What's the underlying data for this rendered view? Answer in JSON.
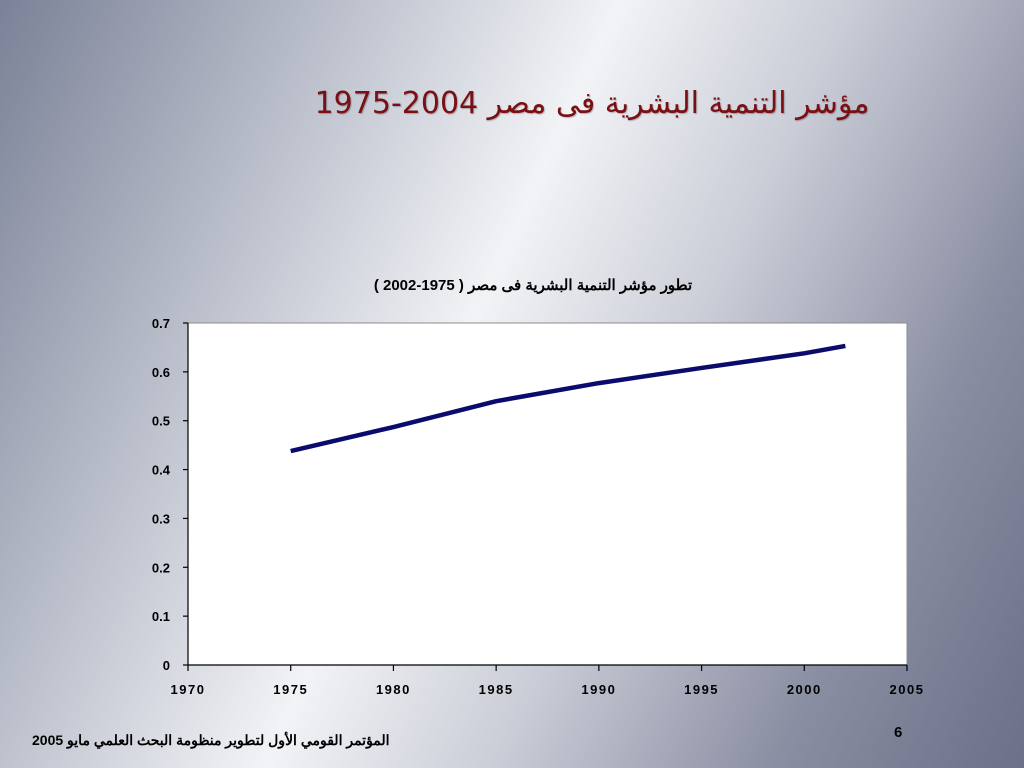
{
  "slide": {
    "title": "مؤشر التنمية البشرية فى مصر 2004-1975",
    "footer": "المؤتمر القومي الأول لتطوير منظومة البحث العلمي مايو 2005",
    "page_number": "6"
  },
  "colors": {
    "title": "#7a0f14",
    "line": "#0b0b6e",
    "plot_background": "#ffffff"
  },
  "chart_data": {
    "type": "line",
    "title": "تطور مؤشر التنمية البشرية فى مصر ( 1975-2002 )",
    "xlabel": "",
    "ylabel": "",
    "xlim": [
      1970,
      2005
    ],
    "ylim": [
      0,
      0.7
    ],
    "xticks": [
      1970,
      1975,
      1980,
      1985,
      1990,
      1995,
      2000,
      2005
    ],
    "yticks": [
      0,
      0.1,
      0.2,
      0.3,
      0.4,
      0.5,
      0.6,
      0.7
    ],
    "ytick_labels": [
      "0",
      "0.1",
      "0.2",
      "0.3",
      "0.4",
      "0.5",
      "0.6",
      "0.7"
    ],
    "grid": false,
    "legend": "none",
    "series": [
      {
        "x": [
          1975,
          1980,
          1985,
          1990,
          1995,
          2000,
          2002
        ],
        "y": [
          0.438,
          0.487,
          0.54,
          0.577,
          0.608,
          0.638,
          0.653
        ]
      }
    ]
  }
}
